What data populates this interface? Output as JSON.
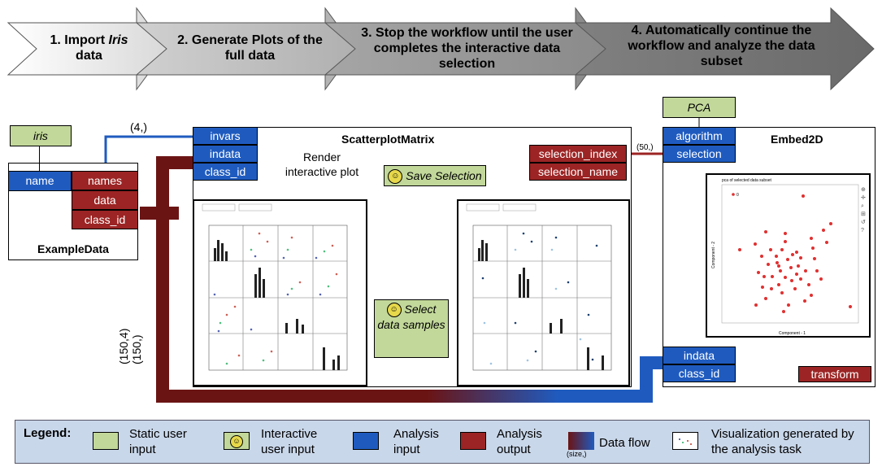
{
  "steps": [
    {
      "pre": "1. Import ",
      "em": "Iris",
      "post": " data"
    },
    {
      "pre": "2. Generate Plots of the full data",
      "em": "",
      "post": ""
    },
    {
      "pre": "3. Stop the workflow until the user completes the interactive data selection",
      "em": "",
      "post": ""
    },
    {
      "pre": "4. Automatically continue the workflow and analyze the data subset",
      "em": "",
      "post": ""
    }
  ],
  "example_data": {
    "input_label": "iris",
    "port_name": "name",
    "outputs": [
      "names",
      "data",
      "class_id"
    ],
    "title": "ExampleData"
  },
  "scatter": {
    "title": "ScatterplotMatrix",
    "inputs": [
      "invars",
      "indata",
      "class_id"
    ],
    "outputs": [
      "selection_index",
      "selection_name"
    ],
    "render_label": "Render interactive plot",
    "save_label": "Save Selection",
    "select_label": "Select data samples"
  },
  "embed": {
    "title": "Embed2D",
    "pca_label": "PCA",
    "inputs_top": [
      "algorithm",
      "selection"
    ],
    "inputs_bottom": [
      "indata",
      "class_id"
    ],
    "output": "transform",
    "plot_title": "pca of selected data subset",
    "xlabel": "Component - 1",
    "ylabel": "Component - 2",
    "legend_entry": "0"
  },
  "flow_labels": {
    "invars_size": "(4,)",
    "selection_size": "(50,)",
    "data_size": "(150,4)",
    "class_size": "(150,)"
  },
  "legend": {
    "title": "Legend:",
    "items": [
      "Static user input",
      "Interactive user input",
      "Analysis input",
      "Analysis output",
      "Data flow",
      "Visualization generated by the analysis task"
    ],
    "flow_size": "(size,)"
  },
  "colors": {
    "blue": "#1f5bbf",
    "red": "#9c2424",
    "green": "#c2d89a"
  }
}
